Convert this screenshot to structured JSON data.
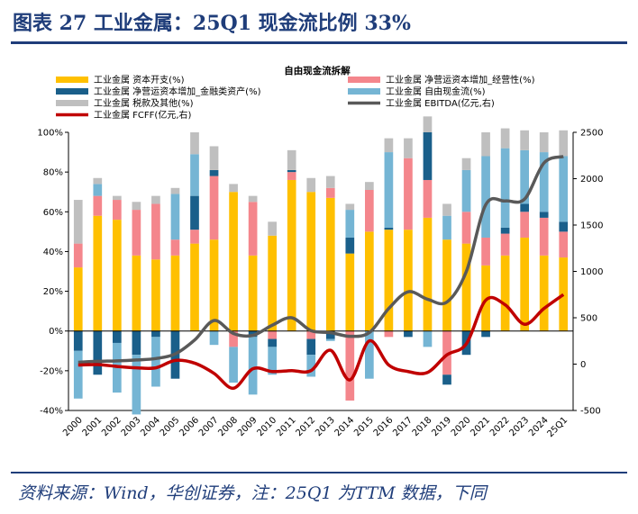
{
  "figure": {
    "title": "图表 27   工业金属：25Q1 现金流比例 33%",
    "source_note": "资料来源：Wind，华创证券，注：25Q1 为TTM 数据，下同"
  },
  "chart_data": {
    "type": "bar",
    "title": "自由现金流拆解",
    "categories": [
      "2000",
      "2001",
      "2002",
      "2003",
      "2004",
      "2005",
      "2006",
      "2007",
      "2008",
      "2009",
      "2010",
      "2011",
      "2012",
      "2013",
      "2014",
      "2015",
      "2016",
      "2017",
      "2018",
      "2019",
      "2020",
      "2021",
      "2022",
      "2023",
      "2024",
      "25Q1"
    ],
    "y_left": {
      "ylim": [
        -40,
        100
      ],
      "ticks": [
        "100%",
        "80%",
        "60%",
        "40%",
        "20%",
        "0%",
        "-20%",
        "-40%"
      ]
    },
    "y_right": {
      "ylim": [
        -500,
        2500
      ],
      "ticks": [
        "2500",
        "2000",
        "1500",
        "1000",
        "500",
        "0",
        "-500"
      ]
    },
    "series": [
      {
        "name": "工业金属 资本开支(%)",
        "kind": "bar",
        "axis": "left",
        "color": "#ffc000",
        "values": [
          32,
          58,
          56,
          38,
          36,
          38,
          44,
          46,
          70,
          38,
          48,
          76,
          70,
          67,
          39,
          50,
          51,
          51,
          57,
          46,
          44,
          33,
          38,
          47,
          38,
          37
        ]
      },
      {
        "name": "工业金属 净营运资本增加_经营性(%)",
        "kind": "bar",
        "axis": "left",
        "color": "#f4868c",
        "values": [
          12,
          10,
          10,
          23,
          28,
          8,
          7,
          32,
          -8,
          27,
          -4,
          4,
          -4,
          5,
          -35,
          21,
          -3,
          36,
          19,
          -22,
          16,
          14,
          11,
          13,
          19,
          13
        ]
      },
      {
        "name": "工业金属 净营运资本增加_金融类资产(%)",
        "kind": "bar",
        "axis": "left",
        "color": "#1a5f8a",
        "values": [
          -10,
          -22,
          -6,
          -12,
          -3,
          -24,
          17,
          3,
          0,
          -3,
          -4,
          1,
          -8,
          -4,
          8,
          0,
          1,
          -3,
          24,
          -5,
          -12,
          -3,
          3,
          4,
          3,
          5
        ]
      },
      {
        "name": "工业金属 自由现金流(%)",
        "kind": "bar",
        "axis": "left",
        "color": "#75b5d4",
        "values": [
          -24,
          6,
          -25,
          -30,
          -25,
          23,
          21,
          -7,
          -18,
          -29,
          -14,
          0,
          -11,
          -1,
          14,
          -24,
          38,
          0,
          -8,
          12,
          21,
          41,
          40,
          27,
          30,
          33
        ]
      },
      {
        "name": "工业金属 税款及其他(%)",
        "kind": "bar",
        "axis": "left",
        "color": "#bfbfbf",
        "values": [
          22,
          3,
          2,
          4,
          4,
          3,
          11,
          12,
          4,
          3,
          7,
          10,
          7,
          6,
          3,
          4,
          7,
          10,
          8,
          6,
          6,
          12,
          10,
          10,
          10,
          13
        ]
      },
      {
        "name": "工业金属 EBITDA(亿元,右)",
        "kind": "line",
        "axis": "right",
        "color": "#595959",
        "values": [
          20,
          30,
          35,
          45,
          60,
          110,
          260,
          470,
          330,
          310,
          420,
          500,
          360,
          340,
          300,
          340,
          600,
          780,
          700,
          670,
          1000,
          1720,
          1760,
          1780,
          2170,
          2240
        ]
      },
      {
        "name": "工业金属 FCFF(亿元,右)",
        "kind": "line",
        "axis": "right",
        "color": "#c00000",
        "values": [
          -10,
          -5,
          -25,
          -40,
          -40,
          40,
          10,
          -100,
          -260,
          -50,
          -80,
          -70,
          -70,
          150,
          -170,
          250,
          -10,
          -80,
          -90,
          100,
          220,
          690,
          640,
          430,
          600,
          750
        ]
      }
    ]
  }
}
